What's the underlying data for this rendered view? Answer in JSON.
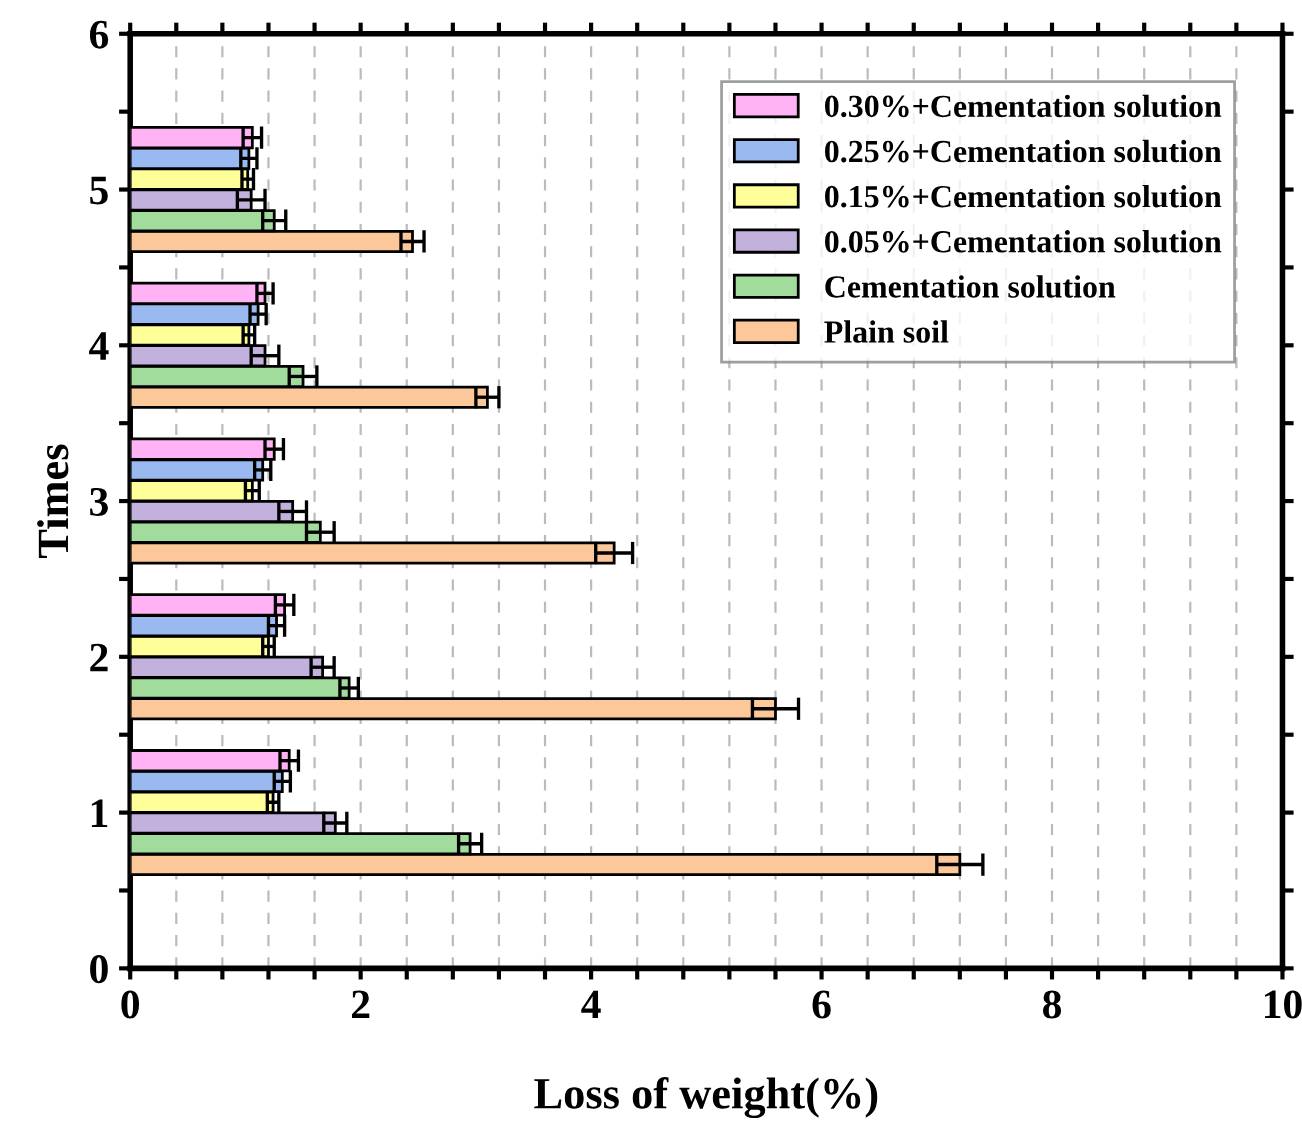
{
  "chart_data": {
    "type": "bar",
    "orientation": "horizontal",
    "xlabel": "Loss of weight(%)",
    "ylabel": "Times",
    "x": [
      1,
      2,
      3,
      4,
      5
    ],
    "series": [
      {
        "name": "Plain soil",
        "color": "#fdc899",
        "values": [
          7.2,
          5.6,
          4.2,
          3.1,
          2.45
        ],
        "errors": [
          0.2,
          0.2,
          0.16,
          0.1,
          0.1
        ]
      },
      {
        "name": "Cementation solution",
        "color": "#a2dc9c",
        "values": [
          2.95,
          1.9,
          1.65,
          1.5,
          1.25
        ],
        "errors": [
          0.1,
          0.08,
          0.12,
          0.12,
          0.1
        ]
      },
      {
        "name": "0.05%+Cementation solution",
        "color": "#c3b1dd",
        "values": [
          1.78,
          1.67,
          1.41,
          1.17,
          1.05
        ],
        "errors": [
          0.1,
          0.1,
          0.12,
          0.12,
          0.12
        ]
      },
      {
        "name": "0.15%+Cementation solution",
        "color": "#ffff99",
        "values": [
          1.24,
          1.2,
          1.06,
          1.03,
          1.02
        ],
        "errors": [
          0.05,
          0.05,
          0.06,
          0.05,
          0.05
        ]
      },
      {
        "name": "0.25%+Cementation solution",
        "color": "#99b9f0",
        "values": [
          1.32,
          1.27,
          1.15,
          1.11,
          1.03
        ],
        "errors": [
          0.07,
          0.07,
          0.07,
          0.07,
          0.07
        ]
      },
      {
        "name": "0.30%+Cementation solution",
        "color": "#ffb3f5",
        "values": [
          1.38,
          1.34,
          1.25,
          1.17,
          1.06
        ],
        "errors": [
          0.08,
          0.08,
          0.08,
          0.07,
          0.08
        ]
      }
    ],
    "xlim": [
      0,
      10
    ],
    "xticks": [
      0,
      {
        "value": 0.4,
        "label": null
      },
      {
        "value": 0.8,
        "label": null
      },
      {
        "value": 1.2,
        "label": null
      },
      {
        "value": 1.6,
        "label": null
      },
      2,
      {
        "value": 2.4,
        "label": null
      },
      {
        "value": 2.8,
        "label": null
      },
      {
        "value": 3.2,
        "label": null
      },
      {
        "value": 3.6,
        "label": null
      },
      4,
      {
        "value": 4.4,
        "label": null
      },
      {
        "value": 4.8,
        "label": null
      },
      {
        "value": 5.2,
        "label": null
      },
      {
        "value": 5.6,
        "label": null
      },
      6,
      {
        "value": 6.4,
        "label": null
      },
      {
        "value": 6.8,
        "label": null
      },
      {
        "value": 7.2,
        "label": null
      },
      {
        "value": 7.6,
        "label": null
      },
      8,
      {
        "value": 8.4,
        "label": null
      },
      {
        "value": 8.8,
        "label": null
      },
      {
        "value": 9.2,
        "label": null
      },
      {
        "value": 9.6,
        "label": null
      },
      10
    ],
    "ylim": [
      0,
      6
    ],
    "yticks": [
      0,
      {
        "value": 0.5,
        "label": null
      },
      1,
      {
        "value": 1.5,
        "label": null
      },
      2,
      {
        "value": 2.5,
        "label": null
      },
      3,
      {
        "value": 3.5,
        "label": null
      },
      4,
      {
        "value": 4.5,
        "label": null
      },
      5,
      {
        "value": 5.5,
        "label": null
      },
      6
    ],
    "grid": "x",
    "legend": "top right"
  }
}
